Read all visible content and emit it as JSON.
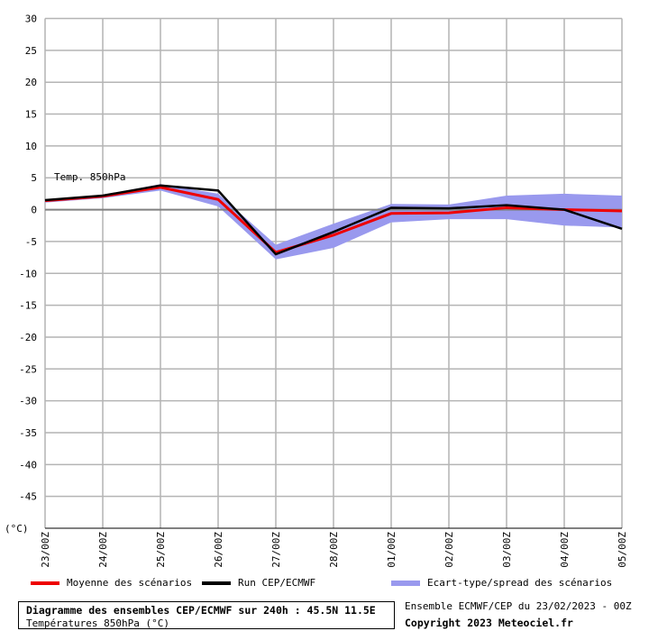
{
  "chart_data": {
    "type": "line",
    "annotation": "Temp. 850hPa",
    "ylabel": "(°C)",
    "ylim": [
      -50,
      32
    ],
    "yticks": [
      30,
      25,
      20,
      15,
      10,
      5,
      0,
      -5,
      -10,
      -15,
      -20,
      -25,
      -30,
      -35,
      -40,
      -45
    ],
    "categories": [
      "23/00Z",
      "24/00Z",
      "25/00Z",
      "26/00Z",
      "27/00Z",
      "28/00Z",
      "01/00Z",
      "02/00Z",
      "03/00Z",
      "04/00Z",
      "05/00Z"
    ],
    "series": [
      {
        "name": "Moyenne des scénarios",
        "color": "#ee0000",
        "values": [
          1.4,
          2.1,
          3.5,
          1.6,
          -6.7,
          -4.0,
          -0.6,
          -0.5,
          0.3,
          0.0,
          -0.2
        ]
      },
      {
        "name": "Run CEP/ECMWF",
        "color": "#000000",
        "values": [
          1.5,
          2.2,
          3.8,
          3.0,
          -7.0,
          -3.5,
          0.3,
          0.2,
          0.7,
          0.0,
          -3.0
        ]
      }
    ],
    "spread": {
      "name": "Ecart-type/spread des scénarios",
      "color": "#9999ee",
      "upper": [
        1.6,
        2.3,
        4.0,
        2.5,
        -5.5,
        -2.2,
        0.9,
        0.8,
        2.2,
        2.5,
        2.2
      ],
      "lower": [
        1.1,
        1.8,
        3.0,
        0.5,
        -7.8,
        -6.0,
        -2.0,
        -1.5,
        -1.5,
        -2.5,
        -2.8
      ]
    }
  },
  "legend": {
    "mean": "Moyenne des scénarios",
    "run": "Run CEP/ECMWF",
    "spread": "Ecart-type/spread des scénarios"
  },
  "footer": {
    "title": "Diagramme des ensembles CEP/ECMWF sur 240h : 45.5N 11.5E",
    "subtitle": "Températures 850hPa (°C)",
    "run_info": "Ensemble ECMWF/CEP du 23/02/2023 - 00Z",
    "copyright": "Copyright 2023 Meteociel.fr"
  }
}
